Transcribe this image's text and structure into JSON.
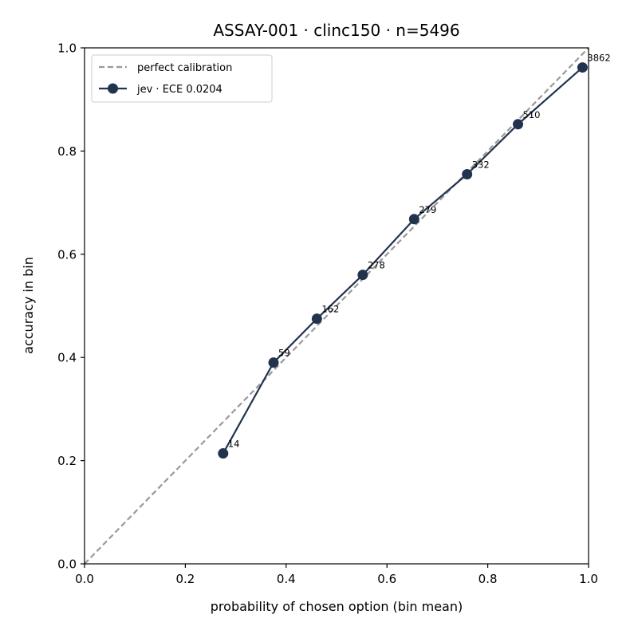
{
  "chart_data": {
    "type": "line",
    "title": "ASSAY-001 · clinc150 · n=5496",
    "xlabel": "probability of chosen option (bin mean)",
    "ylabel": "accuracy in bin",
    "xlim": [
      0.0,
      1.0
    ],
    "ylim": [
      0.0,
      1.0
    ],
    "xticks": [
      "0.0",
      "0.2",
      "0.4",
      "0.6",
      "0.8",
      "1.0"
    ],
    "yticks": [
      "0.0",
      "0.2",
      "0.4",
      "0.6",
      "0.8",
      "1.0"
    ],
    "grid": false,
    "legend_position": "top-left",
    "reference_line": {
      "name": "perfect calibration",
      "x": [
        0.0,
        1.0
      ],
      "y": [
        0.0,
        1.0
      ],
      "style": "dashed",
      "color": "#999999"
    },
    "series": [
      {
        "name": "jev · ECE 0.0204",
        "color": "#22344d",
        "x": [
          0.275,
          0.375,
          0.461,
          0.552,
          0.654,
          0.759,
          0.86,
          0.988
        ],
        "y": [
          0.214,
          0.39,
          0.475,
          0.56,
          0.668,
          0.755,
          0.852,
          0.962
        ],
        "labels": [
          "14",
          "59",
          "162",
          "278",
          "279",
          "332",
          "510",
          "3862"
        ]
      }
    ]
  }
}
